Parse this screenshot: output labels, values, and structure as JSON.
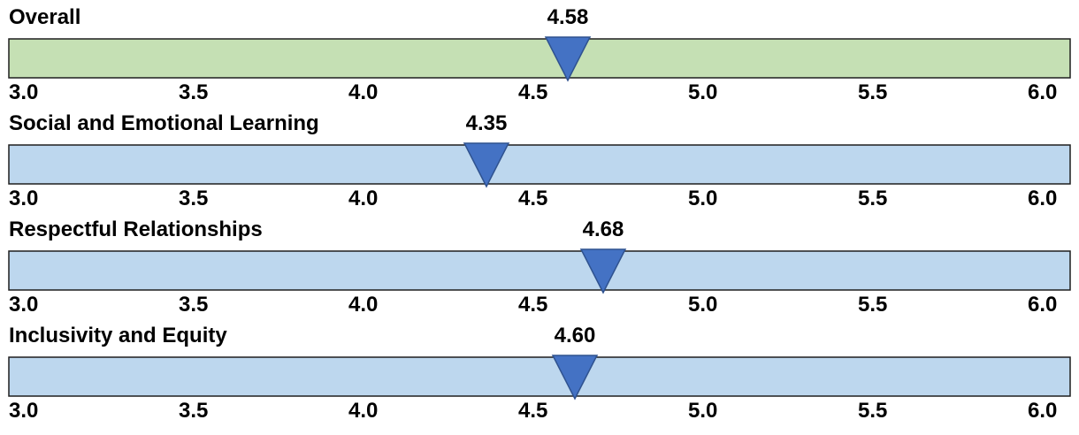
{
  "chart_data": {
    "type": "bullet",
    "axis": {
      "min": 3.0,
      "max": 6.0,
      "ticks": [
        "3.0",
        "3.5",
        "4.0",
        "4.5",
        "5.0",
        "5.5",
        "6.0"
      ]
    },
    "grid": false,
    "legend": "none",
    "marker_color": "#4472C4",
    "marker_stroke": "#2F528F",
    "bar_stroke": "#1F1F1F",
    "rows": [
      {
        "title": "Overall",
        "value": 4.58,
        "value_label": "4.58",
        "bar_color": "#C5E0B4"
      },
      {
        "title": "Social and Emotional Learning",
        "value": 4.35,
        "value_label": "4.35",
        "bar_color": "#BDD7EE"
      },
      {
        "title": "Respectful Relationships",
        "value": 4.68,
        "value_label": "4.68",
        "bar_color": "#BDD7EE"
      },
      {
        "title": "Inclusivity and Equity",
        "value": 4.6,
        "value_label": "4.60",
        "bar_color": "#BDD7EE"
      }
    ]
  }
}
